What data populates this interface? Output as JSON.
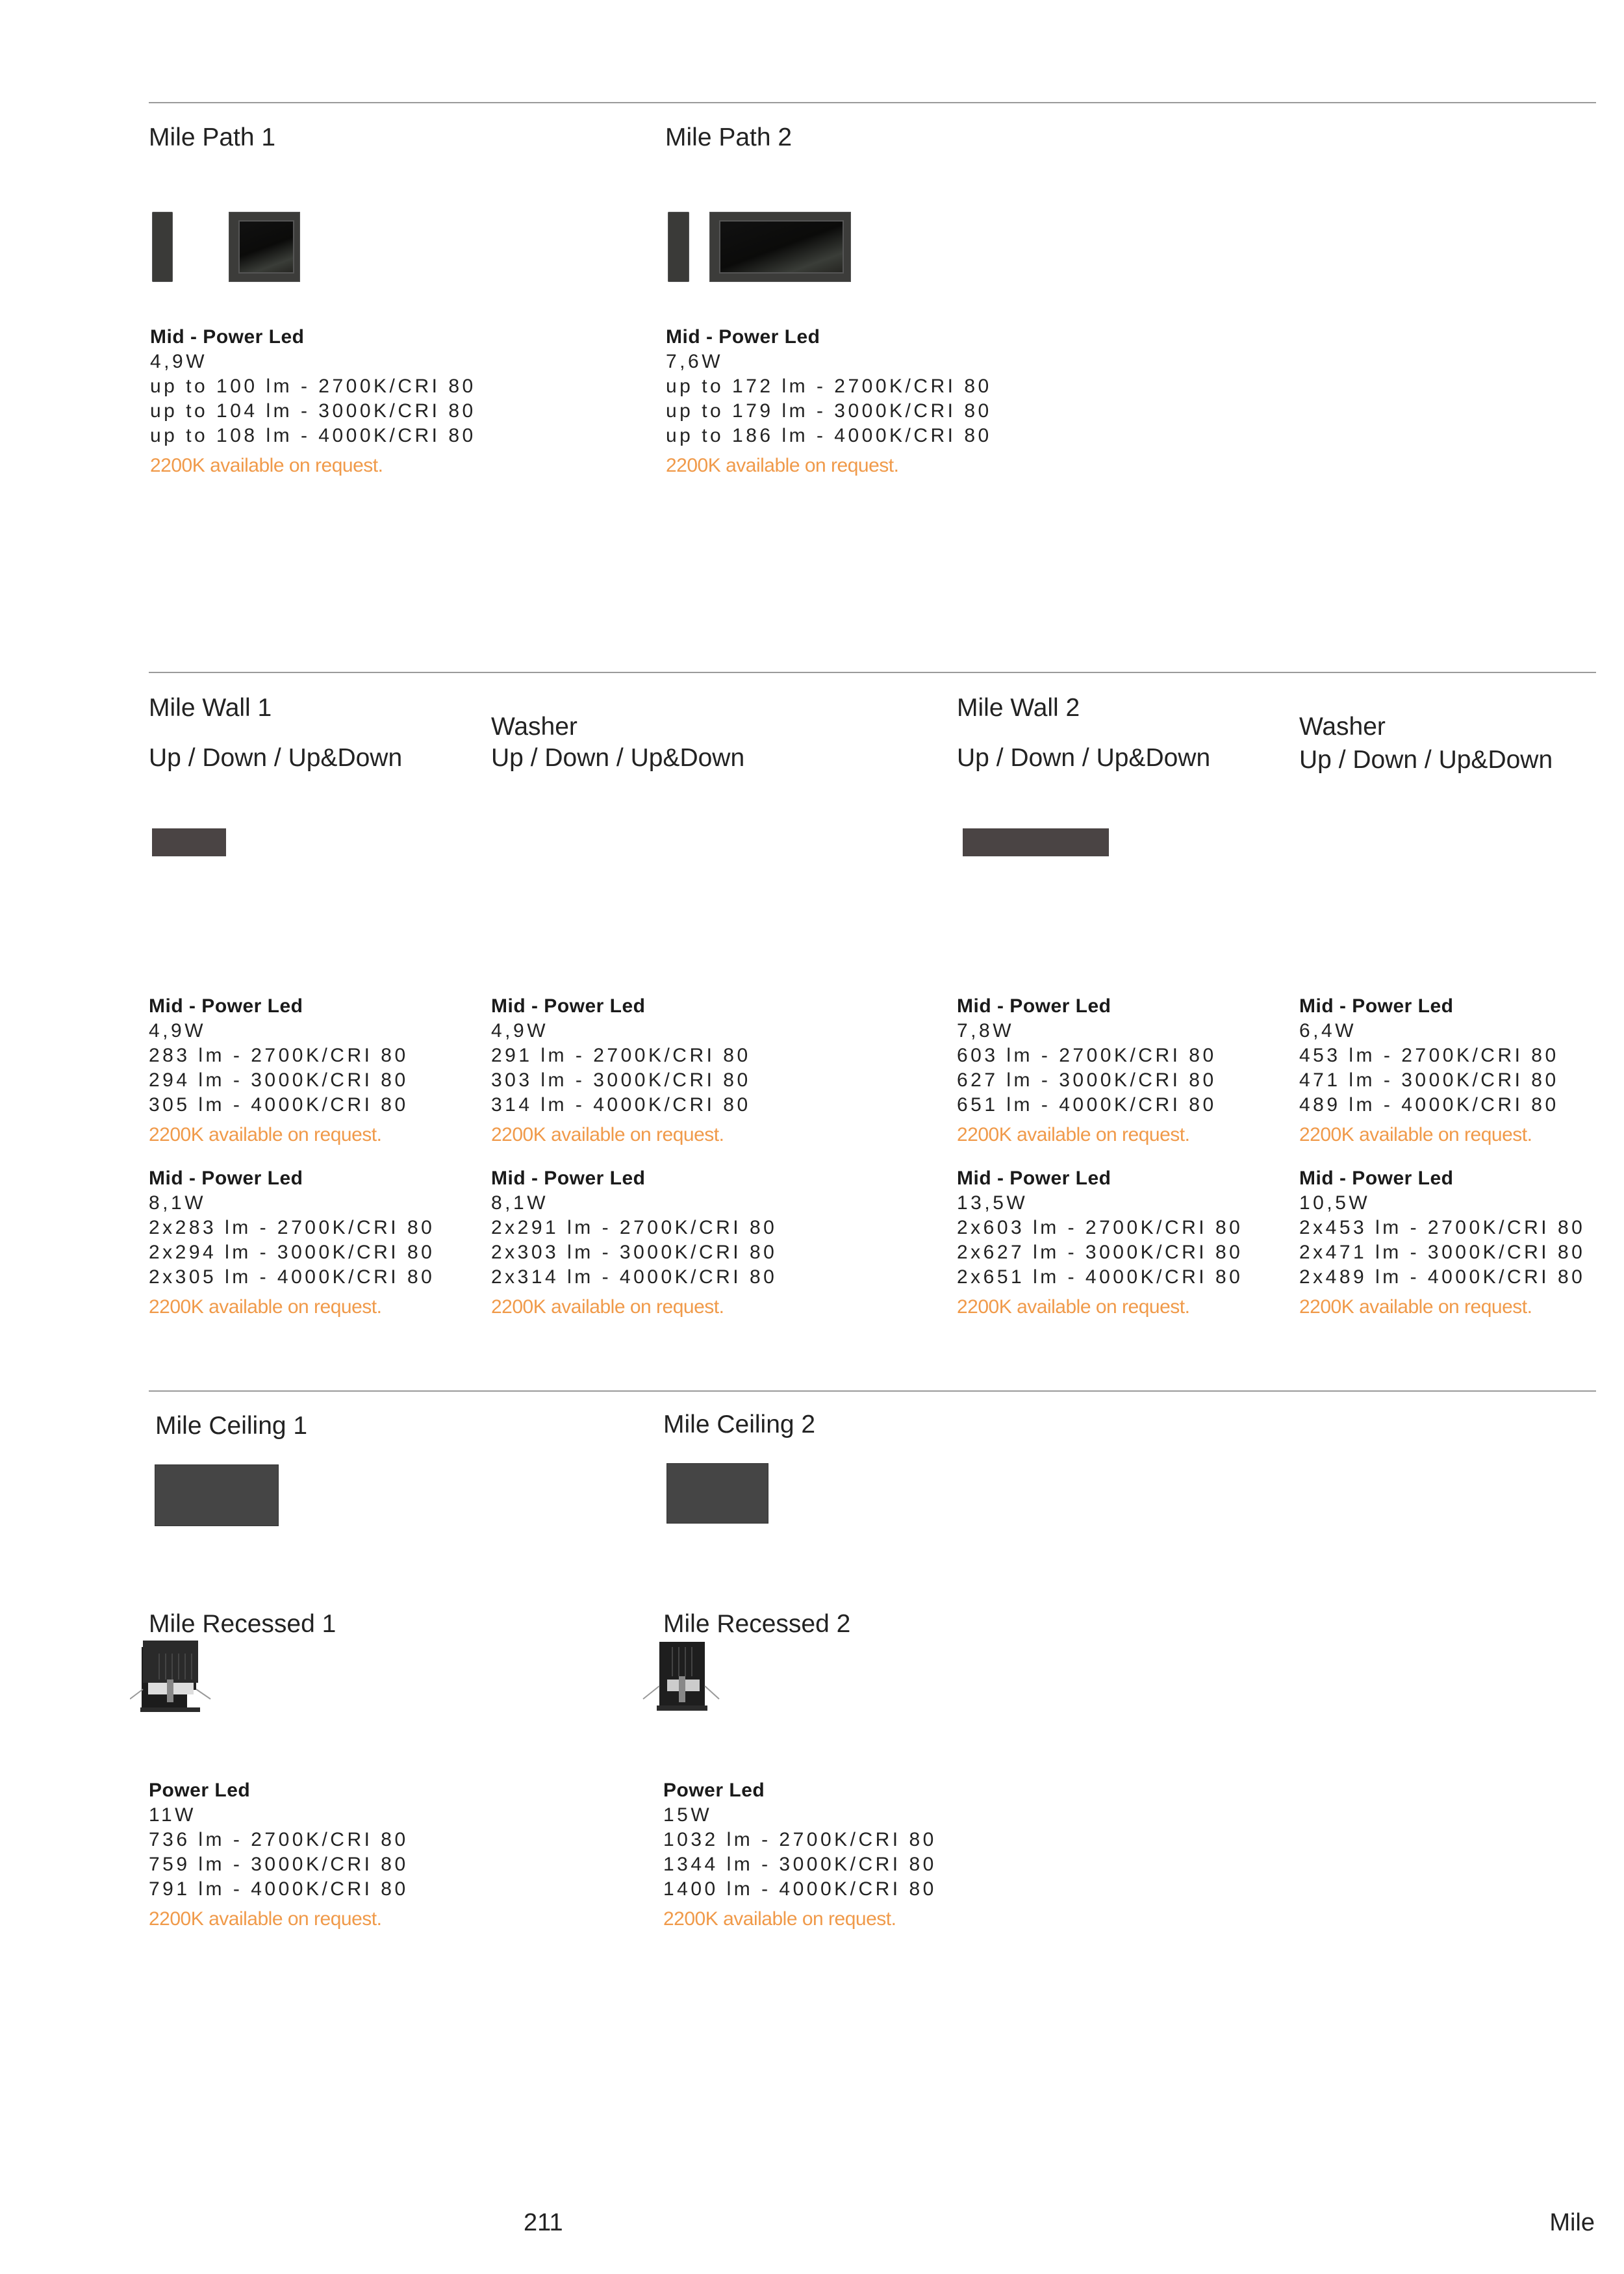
{
  "sections": {
    "path": {
      "items": [
        {
          "title": "Mile Path 1",
          "specs": [
            {
              "heading": "Mid - Power Led",
              "power": "4,9W",
              "lines": [
                "up to 100 lm - 2700K/CRI 80",
                "up to 104 lm - 3000K/CRI 80",
                "up to 108 lm - 4000K/CRI 80"
              ],
              "note": "2200K available on request."
            }
          ]
        },
        {
          "title": "Mile Path 2",
          "specs": [
            {
              "heading": "Mid - Power Led",
              "power": "7,6W",
              "lines": [
                "up to 172 lm - 2700K/CRI 80",
                "up to 179 lm - 3000K/CRI 80",
                "up to 186 lm - 4000K/CRI 80"
              ],
              "note": "2200K available on request."
            }
          ]
        }
      ]
    },
    "wall": {
      "items": [
        {
          "title": "Mile Wall 1",
          "subtitle": "Up / Down / Up&Down",
          "specs": [
            {
              "heading": "Mid - Power Led",
              "power": "4,9W",
              "lines": [
                "283 lm - 2700K/CRI 80",
                "294 lm - 3000K/CRI 80",
                "305 lm - 4000K/CRI 80"
              ],
              "note": "2200K available on request."
            },
            {
              "heading": "Mid - Power Led",
              "power": "8,1W",
              "lines": [
                "2x283 lm - 2700K/CRI 80",
                "2x294 lm - 3000K/CRI 80",
                "2x305 lm - 4000K/CRI 80"
              ],
              "note": "2200K available on request."
            }
          ]
        },
        {
          "title": "Washer",
          "subtitle": "Up / Down / Up&Down",
          "specs": [
            {
              "heading": "Mid - Power Led",
              "power": "4,9W",
              "lines": [
                "291 lm - 2700K/CRI 80",
                "303 lm - 3000K/CRI 80",
                "314 lm - 4000K/CRI 80"
              ],
              "note": "2200K available on request."
            },
            {
              "heading": "Mid - Power Led",
              "power": "8,1W",
              "lines": [
                "2x291 lm - 2700K/CRI 80",
                "2x303 lm - 3000K/CRI 80",
                "2x314 lm - 4000K/CRI 80"
              ],
              "note": "2200K available on request."
            }
          ]
        },
        {
          "title": "Mile Wall 2",
          "subtitle": "Up / Down / Up&Down",
          "specs": [
            {
              "heading": "Mid - Power Led",
              "power": "7,8W",
              "lines": [
                "603 lm - 2700K/CRI 80",
                "627 lm - 3000K/CRI 80",
                "651 lm - 4000K/CRI 80"
              ],
              "note": "2200K available on request."
            },
            {
              "heading": "Mid - Power Led",
              "power": "13,5W",
              "lines": [
                "2x603 lm - 2700K/CRI 80",
                "2x627 lm - 3000K/CRI 80",
                "2x651 lm - 4000K/CRI 80"
              ],
              "note": "2200K available on request."
            }
          ]
        },
        {
          "title": "Washer",
          "subtitle": "Up / Down / Up&Down",
          "specs": [
            {
              "heading": "Mid - Power Led",
              "power": "6,4W",
              "lines": [
                "453 lm - 2700K/CRI 80",
                "471 lm - 3000K/CRI 80",
                "489 lm - 4000K/CRI 80"
              ],
              "note": "2200K available on request."
            },
            {
              "heading": "Mid - Power Led",
              "power": "10,5W",
              "lines": [
                "2x453 lm - 2700K/CRI 80",
                "2x471 lm - 3000K/CRI 80",
                "2x489 lm - 4000K/CRI 80"
              ],
              "note": "2200K available on request."
            }
          ]
        }
      ]
    },
    "ceiling": {
      "items": [
        {
          "title": "Mile Ceiling 1"
        },
        {
          "title": "Mile Ceiling 2"
        }
      ]
    },
    "recessed": {
      "items": [
        {
          "title": "Mile Recessed 1",
          "specs": [
            {
              "heading": "Power Led",
              "power": "11W",
              "lines": [
                "736 lm - 2700K/CRI 80",
                "759 lm - 3000K/CRI 80",
                "791 lm - 4000K/CRI 80"
              ],
              "note": "2200K available on request."
            }
          ]
        },
        {
          "title": "Mile Recessed 2",
          "specs": [
            {
              "heading": "Power Led",
              "power": "15W",
              "lines": [
                "1032 lm - 2700K/CRI 80",
                "1344 lm - 3000K/CRI 80",
                "1400 lm - 4000K/CRI 80"
              ],
              "note": "2200K available on request."
            }
          ]
        }
      ]
    }
  },
  "footer": {
    "page_number": "211",
    "section": "Mile"
  },
  "colors": {
    "note": "#f09a4a",
    "fixture": "#3c3c3a",
    "rule": "#9a9a9a"
  }
}
